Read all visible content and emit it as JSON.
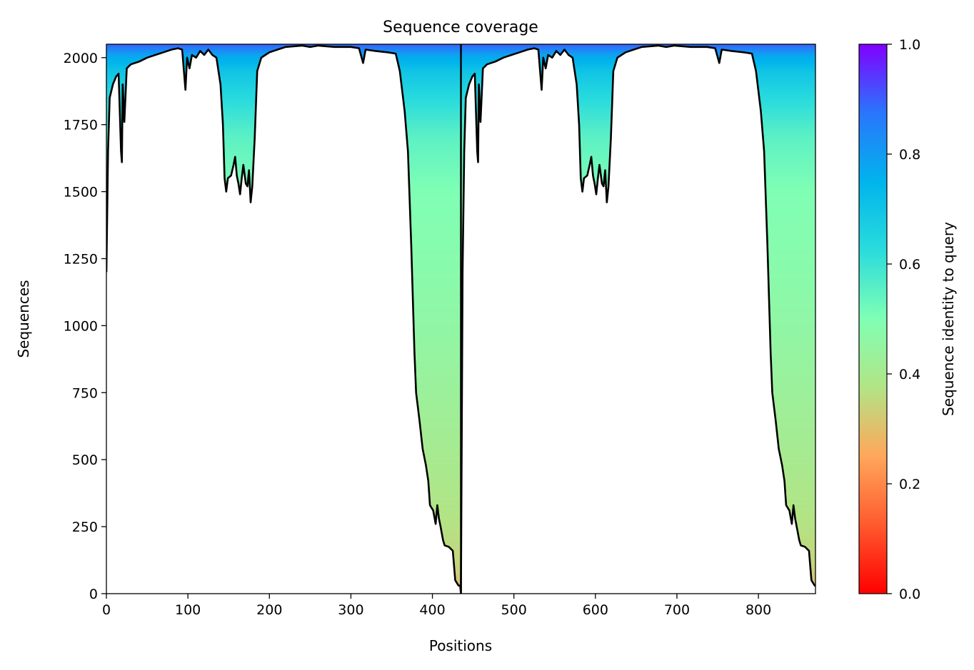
{
  "chart_data": {
    "type": "heatmap",
    "title": "Sequence coverage",
    "xlabel": "Positions",
    "ylabel": "Sequences",
    "xlim": [
      0,
      870
    ],
    "ylim": [
      0,
      2050
    ],
    "x_ticks": [
      0,
      100,
      200,
      300,
      400,
      500,
      600,
      700,
      800
    ],
    "y_ticks": [
      0,
      250,
      500,
      750,
      1000,
      1250,
      1500,
      1750,
      2000
    ],
    "chain_boundary": 435,
    "colormap": "rainbow",
    "colorbar": {
      "label": "Sequence identity to query",
      "range": [
        0.0,
        1.0
      ],
      "ticks": [
        "0.0",
        "0.2",
        "0.4",
        "0.6",
        "0.8",
        "1.0"
      ]
    },
    "identity_by_sequence_index": [
      [
        0,
        0.3
      ],
      [
        100,
        0.34
      ],
      [
        250,
        0.37
      ],
      [
        500,
        0.4
      ],
      [
        750,
        0.43
      ],
      [
        1000,
        0.46
      ],
      [
        1250,
        0.48
      ],
      [
        1500,
        0.5
      ],
      [
        1700,
        0.55
      ],
      [
        1760,
        0.58
      ],
      [
        1850,
        0.63
      ],
      [
        1950,
        0.7
      ],
      [
        2010,
        0.78
      ],
      [
        2050,
        0.9
      ]
    ],
    "coverage_line": {
      "name": "coverage",
      "color": "#000000",
      "points": [
        [
          0,
          1200
        ],
        [
          2,
          1650
        ],
        [
          4,
          1850
        ],
        [
          8,
          1900
        ],
        [
          12,
          1930
        ],
        [
          15,
          1940
        ],
        [
          18,
          1650
        ],
        [
          19,
          1610
        ],
        [
          20,
          1900
        ],
        [
          22,
          1760
        ],
        [
          25,
          1960
        ],
        [
          30,
          1975
        ],
        [
          40,
          1985
        ],
        [
          50,
          2000
        ],
        [
          60,
          2010
        ],
        [
          70,
          2020
        ],
        [
          80,
          2030
        ],
        [
          88,
          2035
        ],
        [
          93,
          2030
        ],
        [
          97,
          1880
        ],
        [
          99,
          2000
        ],
        [
          102,
          1960
        ],
        [
          105,
          2010
        ],
        [
          110,
          2000
        ],
        [
          115,
          2025
        ],
        [
          120,
          2010
        ],
        [
          125,
          2030
        ],
        [
          130,
          2010
        ],
        [
          135,
          2000
        ],
        [
          140,
          1900
        ],
        [
          143,
          1750
        ],
        [
          145,
          1550
        ],
        [
          147,
          1500
        ],
        [
          149,
          1550
        ],
        [
          153,
          1560
        ],
        [
          156,
          1600
        ],
        [
          158,
          1630
        ],
        [
          160,
          1560
        ],
        [
          162,
          1530
        ],
        [
          164,
          1490
        ],
        [
          166,
          1550
        ],
        [
          168,
          1600
        ],
        [
          171,
          1530
        ],
        [
          173,
          1520
        ],
        [
          175,
          1580
        ],
        [
          177,
          1460
        ],
        [
          179,
          1520
        ],
        [
          182,
          1700
        ],
        [
          185,
          1950
        ],
        [
          190,
          2000
        ],
        [
          195,
          2010
        ],
        [
          200,
          2020
        ],
        [
          210,
          2030
        ],
        [
          220,
          2040
        ],
        [
          240,
          2045
        ],
        [
          250,
          2040
        ],
        [
          260,
          2045
        ],
        [
          280,
          2040
        ],
        [
          300,
          2040
        ],
        [
          310,
          2035
        ],
        [
          315,
          1980
        ],
        [
          318,
          2030
        ],
        [
          330,
          2025
        ],
        [
          345,
          2020
        ],
        [
          355,
          2015
        ],
        [
          360,
          1950
        ],
        [
          366,
          1800
        ],
        [
          370,
          1650
        ],
        [
          374,
          1300
        ],
        [
          378,
          900
        ],
        [
          380,
          750
        ],
        [
          384,
          650
        ],
        [
          388,
          540
        ],
        [
          392,
          480
        ],
        [
          395,
          420
        ],
        [
          397,
          330
        ],
        [
          401,
          310
        ],
        [
          404,
          260
        ],
        [
          406,
          330
        ],
        [
          408,
          280
        ],
        [
          410,
          250
        ],
        [
          413,
          200
        ],
        [
          415,
          180
        ],
        [
          420,
          175
        ],
        [
          425,
          160
        ],
        [
          428,
          50
        ],
        [
          432,
          30
        ],
        [
          434,
          30
        ],
        [
          435,
          0
        ],
        [
          437,
          1200
        ],
        [
          439,
          1650
        ],
        [
          441,
          1850
        ],
        [
          445,
          1900
        ],
        [
          449,
          1930
        ],
        [
          452,
          1940
        ],
        [
          455,
          1650
        ],
        [
          456,
          1610
        ],
        [
          457,
          1900
        ],
        [
          459,
          1760
        ],
        [
          462,
          1960
        ],
        [
          467,
          1975
        ],
        [
          477,
          1985
        ],
        [
          487,
          2000
        ],
        [
          497,
          2010
        ],
        [
          507,
          2020
        ],
        [
          517,
          2030
        ],
        [
          525,
          2035
        ],
        [
          530,
          2030
        ],
        [
          534,
          1880
        ],
        [
          536,
          2000
        ],
        [
          539,
          1960
        ],
        [
          542,
          2010
        ],
        [
          547,
          2000
        ],
        [
          552,
          2025
        ],
        [
          557,
          2010
        ],
        [
          562,
          2030
        ],
        [
          567,
          2010
        ],
        [
          572,
          2000
        ],
        [
          577,
          1900
        ],
        [
          580,
          1750
        ],
        [
          582,
          1550
        ],
        [
          584,
          1500
        ],
        [
          586,
          1550
        ],
        [
          590,
          1560
        ],
        [
          593,
          1600
        ],
        [
          595,
          1630
        ],
        [
          597,
          1560
        ],
        [
          599,
          1530
        ],
        [
          601,
          1490
        ],
        [
          603,
          1550
        ],
        [
          605,
          1600
        ],
        [
          608,
          1530
        ],
        [
          610,
          1520
        ],
        [
          612,
          1580
        ],
        [
          614,
          1460
        ],
        [
          616,
          1520
        ],
        [
          619,
          1700
        ],
        [
          622,
          1950
        ],
        [
          627,
          2000
        ],
        [
          632,
          2010
        ],
        [
          637,
          2020
        ],
        [
          647,
          2030
        ],
        [
          657,
          2040
        ],
        [
          677,
          2045
        ],
        [
          687,
          2040
        ],
        [
          697,
          2045
        ],
        [
          717,
          2040
        ],
        [
          737,
          2040
        ],
        [
          747,
          2035
        ],
        [
          752,
          1980
        ],
        [
          755,
          2030
        ],
        [
          767,
          2025
        ],
        [
          782,
          2020
        ],
        [
          792,
          2015
        ],
        [
          797,
          1950
        ],
        [
          803,
          1800
        ],
        [
          807,
          1650
        ],
        [
          811,
          1300
        ],
        [
          815,
          900
        ],
        [
          817,
          750
        ],
        [
          821,
          650
        ],
        [
          825,
          540
        ],
        [
          829,
          480
        ],
        [
          832,
          420
        ],
        [
          834,
          330
        ],
        [
          838,
          310
        ],
        [
          841,
          260
        ],
        [
          843,
          330
        ],
        [
          845,
          280
        ],
        [
          847,
          250
        ],
        [
          850,
          200
        ],
        [
          852,
          180
        ],
        [
          857,
          175
        ],
        [
          862,
          160
        ],
        [
          865,
          50
        ],
        [
          869,
          30
        ],
        [
          870,
          30
        ]
      ]
    }
  }
}
